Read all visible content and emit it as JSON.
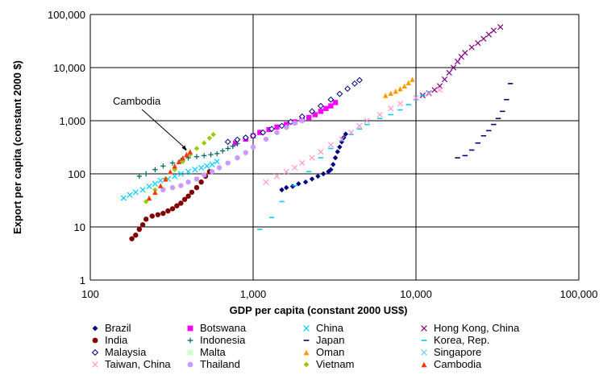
{
  "chart_data": {
    "type": "scatter",
    "xlabel": "GDP per capita (constant 2000 US$)",
    "ylabel": "Export per capita (constant 2000 $)",
    "x_scale": "log",
    "y_scale": "log",
    "xlim": [
      100,
      100000
    ],
    "ylim": [
      1,
      100000
    ],
    "x_ticks": [
      100,
      1000,
      10000,
      100000
    ],
    "x_tick_labels": [
      "100",
      "1,000",
      "10,000",
      "100,000"
    ],
    "y_ticks": [
      1,
      10,
      100,
      1000,
      10000,
      100000
    ],
    "y_tick_labels": [
      "1",
      "10",
      "100",
      "1,000",
      "10,000",
      "100,000"
    ],
    "grid": true,
    "legend_position": "bottom",
    "annotation": {
      "text": "Cambodia",
      "x": 390,
      "y": 260
    },
    "series": [
      {
        "name": "Brazil",
        "color": "#000080",
        "marker": "diamond",
        "x": [
          1500,
          1600,
          1750,
          1900,
          2100,
          2300,
          2500,
          2700,
          2900,
          3000,
          3100,
          3200,
          3300,
          3400,
          3500,
          3600,
          3700
        ],
        "y": [
          50,
          55,
          58,
          65,
          70,
          80,
          90,
          100,
          110,
          120,
          150,
          200,
          260,
          320,
          400,
          480,
          560
        ]
      },
      {
        "name": "Botswana",
        "color": "#ff00ff",
        "marker": "square",
        "x": [
          780,
          900,
          1000,
          1100,
          1250,
          1400,
          1600,
          1800,
          2000,
          2200,
          2400,
          2600,
          2800,
          3000,
          3200
        ],
        "y": [
          380,
          450,
          520,
          600,
          680,
          760,
          850,
          950,
          1050,
          1150,
          1300,
          1500,
          1700,
          1900,
          2200
        ]
      },
      {
        "name": "China",
        "color": "#00ccff",
        "marker": "x",
        "x": [
          160,
          175,
          190,
          210,
          230,
          250,
          270,
          300,
          330,
          360,
          400,
          440,
          480,
          520,
          560,
          600
        ],
        "y": [
          35,
          40,
          45,
          50,
          58,
          65,
          75,
          80,
          90,
          100,
          110,
          120,
          130,
          140,
          150,
          170
        ]
      },
      {
        "name": "Hong Kong, China",
        "color": "#800080",
        "marker": "x",
        "x": [
          11000,
          12000,
          13000,
          14000,
          15000,
          16000,
          17000,
          18000,
          19000,
          20000,
          22000,
          24000,
          26000,
          28000,
          30000,
          33000
        ],
        "y": [
          3000,
          3300,
          3800,
          4500,
          6000,
          8000,
          10000,
          13000,
          16000,
          19000,
          24000,
          29000,
          35000,
          42000,
          50000,
          58000
        ]
      },
      {
        "name": "India",
        "color": "#800000",
        "marker": "circle",
        "x": [
          180,
          190,
          200,
          210,
          220,
          240,
          260,
          280,
          300,
          320,
          340,
          360,
          380,
          400,
          420,
          450,
          480,
          510,
          540
        ],
        "y": [
          6,
          7,
          9,
          11,
          14,
          16,
          17,
          18,
          20,
          22,
          25,
          28,
          33,
          38,
          45,
          55,
          70,
          90,
          110
        ]
      },
      {
        "name": "Indonesia",
        "color": "#006666",
        "marker": "plus",
        "x": [
          200,
          220,
          250,
          280,
          320,
          360,
          400,
          450,
          500,
          550,
          600,
          650,
          700,
          750,
          800
        ],
        "y": [
          90,
          100,
          120,
          140,
          160,
          180,
          200,
          210,
          220,
          230,
          240,
          270,
          300,
          330,
          370
        ]
      },
      {
        "name": "Japan",
        "color": "#000080",
        "marker": "dash",
        "x": [
          18000,
          20000,
          22000,
          24000,
          26000,
          28000,
          30000,
          32000,
          34000,
          36000,
          38000
        ],
        "y": [
          200,
          220,
          280,
          380,
          520,
          650,
          850,
          1100,
          1500,
          2500,
          5000
        ]
      },
      {
        "name": "Korea, Rep.",
        "color": "#00ccff",
        "marker": "dash",
        "x": [
          1100,
          1300,
          1500,
          1800,
          2200,
          2600,
          3000,
          3500,
          4000,
          4500,
          5000,
          6000,
          7000,
          8000,
          9000,
          10000,
          11000,
          12000
        ],
        "y": [
          9,
          15,
          30,
          60,
          110,
          200,
          300,
          420,
          550,
          700,
          850,
          1100,
          1300,
          1600,
          2000,
          2500,
          3000,
          3500
        ]
      },
      {
        "name": "Malaysia",
        "color": "#000080",
        "marker": "diamond-open",
        "x": [
          700,
          800,
          900,
          1000,
          1150,
          1300,
          1500,
          1700,
          2000,
          2300,
          2600,
          3000,
          3400,
          3800,
          4200,
          4500
        ],
        "y": [
          400,
          440,
          480,
          520,
          600,
          700,
          800,
          950,
          1200,
          1500,
          1900,
          2500,
          3200,
          4000,
          5000,
          5800
        ]
      },
      {
        "name": "Malta",
        "color": "#ccffcc",
        "marker": "square",
        "x": [],
        "y": []
      },
      {
        "name": "Oman",
        "color": "#ff9900",
        "marker": "triangle",
        "x": [
          6500,
          7000,
          7500,
          8000,
          8500,
          9000,
          9500
        ],
        "y": [
          3000,
          3300,
          3600,
          4000,
          4500,
          5200,
          6000
        ]
      },
      {
        "name": "Singapore",
        "color": "#66ccff",
        "marker": "x",
        "x": [],
        "y": []
      },
      {
        "name": "Taiwan, China",
        "color": "#ff99cc",
        "marker": "x",
        "x": [
          1200,
          1400,
          1600,
          1800,
          2000,
          2300,
          2600,
          3000,
          3500,
          4000,
          4500,
          5000,
          6000,
          7000,
          8000,
          10000,
          12000,
          14000
        ],
        "y": [
          70,
          90,
          110,
          130,
          160,
          200,
          260,
          350,
          450,
          600,
          800,
          1000,
          1300,
          1700,
          2100,
          2700,
          3200,
          3800
        ]
      },
      {
        "name": "Thailand",
        "color": "#cc99ff",
        "marker": "circle",
        "x": [
          280,
          320,
          360,
          400,
          450,
          500,
          560,
          620,
          700,
          800,
          900,
          1000,
          1200,
          1400,
          1600,
          1800,
          2000
        ],
        "y": [
          50,
          55,
          60,
          70,
          80,
          95,
          110,
          130,
          160,
          200,
          250,
          320,
          450,
          600,
          750,
          900,
          1000
        ]
      },
      {
        "name": "Vietnam",
        "color": "#99cc00",
        "marker": "diamond",
        "x": [
          220,
          250,
          290,
          330,
          370,
          410,
          450,
          500,
          540,
          570
        ],
        "y": [
          30,
          50,
          80,
          120,
          170,
          230,
          300,
          380,
          470,
          550
        ]
      },
      {
        "name": "Cambodia",
        "color": "#ff3300",
        "marker": "triangle",
        "x": [
          230,
          250,
          270,
          290,
          310,
          330,
          350,
          370,
          390,
          410
        ],
        "y": [
          35,
          45,
          60,
          80,
          110,
          140,
          170,
          200,
          230,
          260
        ]
      }
    ]
  }
}
